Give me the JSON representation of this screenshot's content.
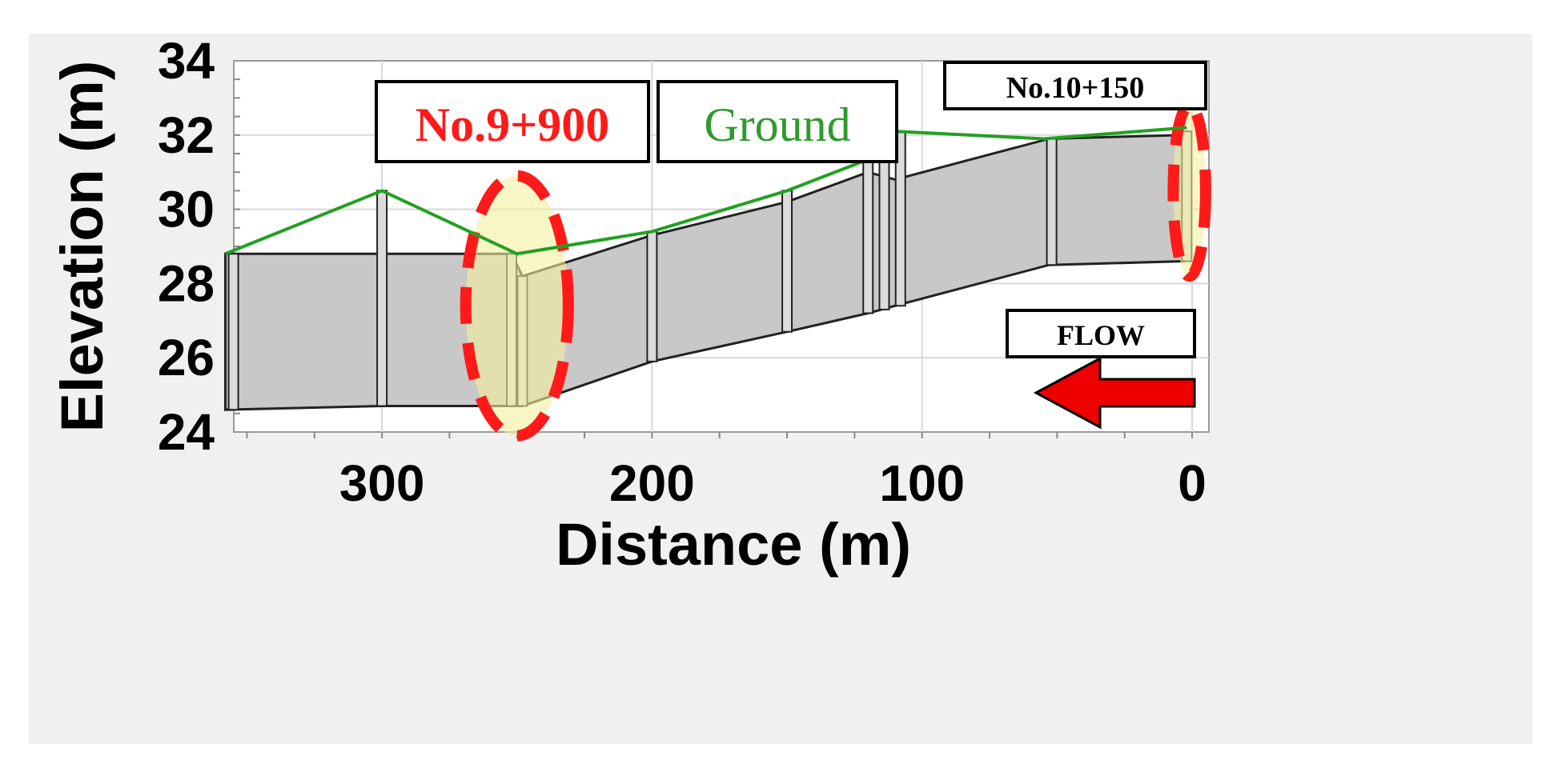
{
  "chart_data": {
    "type": "area",
    "title": "",
    "xlabel": "Distance (m)",
    "ylabel": "Elevation (m)",
    "xlim": [
      360,
      0
    ],
    "ylim": [
      24,
      34
    ],
    "x_ticks": [
      300,
      200,
      100,
      0
    ],
    "y_ticks": [
      24,
      26,
      28,
      30,
      32,
      34
    ],
    "x_reversed": true,
    "grid": true,
    "series": [
      {
        "name": "Ground",
        "color": "#22a022",
        "points": [
          [
            358,
            28.8
          ],
          [
            300,
            30.5
          ],
          [
            250,
            28.8
          ],
          [
            200,
            29.4
          ],
          [
            150,
            30.5
          ],
          [
            118,
            31.4
          ],
          [
            110,
            32.1
          ],
          [
            55,
            31.9
          ],
          [
            2,
            32.2
          ]
        ]
      }
    ],
    "channel_top": [
      [
        358,
        28.8
      ],
      [
        300,
        28.8
      ],
      [
        252,
        28.8
      ],
      [
        248,
        28.2
      ],
      [
        200,
        29.3
      ],
      [
        150,
        30.2
      ],
      [
        120,
        31.0
      ],
      [
        110,
        30.8
      ],
      [
        53,
        31.9
      ],
      [
        3,
        32.0
      ]
    ],
    "channel_bottom": [
      [
        358,
        24.6
      ],
      [
        300,
        24.7
      ],
      [
        252,
        24.7
      ],
      [
        248,
        24.7
      ],
      [
        200,
        25.9
      ],
      [
        150,
        26.7
      ],
      [
        120,
        27.2
      ],
      [
        110,
        27.4
      ],
      [
        53,
        28.5
      ],
      [
        3,
        28.6
      ]
    ],
    "sections": [
      {
        "x": 355,
        "top": 28.8,
        "bottom": 24.6
      },
      {
        "x": 300,
        "top": 30.5,
        "bottom": 24.7
      },
      {
        "x": 252,
        "top": 28.8,
        "bottom": 24.7
      },
      {
        "x": 248,
        "top": 28.2,
        "bottom": 24.7
      },
      {
        "x": 200,
        "top": 29.4,
        "bottom": 25.9
      },
      {
        "x": 150,
        "top": 30.5,
        "bottom": 26.7
      },
      {
        "x": 120,
        "top": 31.9,
        "bottom": 27.2
      },
      {
        "x": 114,
        "top": 31.9,
        "bottom": 27.3
      },
      {
        "x": 108,
        "top": 32.1,
        "bottom": 27.4
      },
      {
        "x": 52,
        "top": 31.9,
        "bottom": 28.5
      },
      {
        "x": 2,
        "top": 32.1,
        "bottom": 28.6
      }
    ],
    "highlights": [
      {
        "x": 250,
        "y": 27.4,
        "rx": 19,
        "ry": 3.5
      },
      {
        "x": 1,
        "y": 30.5,
        "rx": 6,
        "ry": 2.3
      }
    ],
    "annotations": {
      "section_left": "No.9+900",
      "ground": "Ground",
      "section_right": "No.10+150",
      "flow": "FLOW"
    },
    "colors": {
      "channel": "#c8c8c8",
      "ground": "#22a022",
      "highlight_fill": "#f5f0a0",
      "highlight_stroke": "#ff1a1a",
      "arrow": "#ee0000",
      "label_red": "#ff1a1a",
      "label_green": "#2e9a2e"
    }
  }
}
